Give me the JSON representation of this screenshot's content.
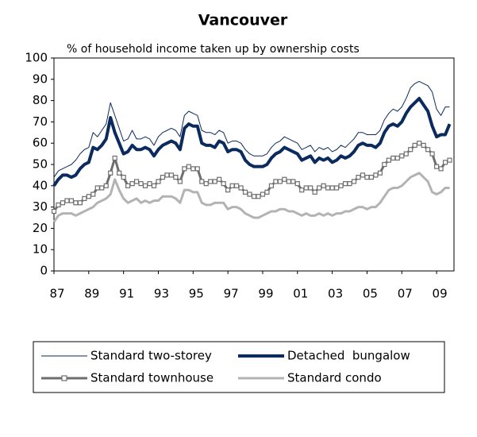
{
  "chart_data": {
    "type": "line",
    "title": "Vancouver",
    "ylabel": "% of household income taken up by ownership costs",
    "x": [
      1987,
      1987.25,
      1987.5,
      1987.75,
      1988,
      1988.25,
      1988.5,
      1988.75,
      1989,
      1989.25,
      1989.5,
      1989.75,
      1990,
      1990.25,
      1990.5,
      1990.75,
      1991,
      1991.25,
      1991.5,
      1991.75,
      1992,
      1992.25,
      1992.5,
      1992.75,
      1993,
      1993.25,
      1993.5,
      1993.75,
      1994,
      1994.25,
      1994.5,
      1994.75,
      1995,
      1995.25,
      1995.5,
      1995.75,
      1996,
      1996.25,
      1996.5,
      1996.75,
      1997,
      1997.25,
      1997.5,
      1997.75,
      1998,
      1998.25,
      1998.5,
      1998.75,
      1999,
      1999.25,
      1999.5,
      1999.75,
      2000,
      2000.25,
      2000.5,
      2000.75,
      2001,
      2001.25,
      2001.5,
      2001.75,
      2002,
      2002.25,
      2002.5,
      2002.75,
      2003,
      2003.25,
      2003.5,
      2003.75,
      2004,
      2004.25,
      2004.5,
      2004.75,
      2005,
      2005.25,
      2005.5,
      2005.75,
      2006,
      2006.25,
      2006.5,
      2006.75,
      2007,
      2007.25,
      2007.5,
      2007.75,
      2008,
      2008.25,
      2008.5,
      2008.75,
      2009,
      2009.25,
      2009.5,
      2009.75
    ],
    "xlim": [
      1987,
      2010
    ],
    "xticks": [
      {
        "value": 1987,
        "label": "87"
      },
      {
        "value": 1989,
        "label": "89"
      },
      {
        "value": 1991,
        "label": "91"
      },
      {
        "value": 1993,
        "label": "93"
      },
      {
        "value": 1995,
        "label": "95"
      },
      {
        "value": 1997,
        "label": "97"
      },
      {
        "value": 1999,
        "label": "99"
      },
      {
        "value": 2001,
        "label": "01"
      },
      {
        "value": 2003,
        "label": "03"
      },
      {
        "value": 2005,
        "label": "05"
      },
      {
        "value": 2007,
        "label": "07"
      },
      {
        "value": 2009,
        "label": "09"
      }
    ],
    "ylim": [
      0,
      100
    ],
    "yticks": [
      0,
      10,
      20,
      30,
      40,
      50,
      60,
      70,
      80,
      90,
      100
    ],
    "series": [
      {
        "name": "Standard two-storey",
        "color": "#0b2a5e",
        "width": 1,
        "values": [
          44,
          47,
          48,
          49,
          50,
          52,
          55,
          57,
          58,
          65,
          63,
          66,
          69,
          79,
          73,
          67,
          61,
          62,
          66,
          62,
          62,
          63,
          62,
          59,
          63,
          65,
          66,
          67,
          66,
          63,
          73,
          75,
          74,
          73,
          66,
          65,
          65,
          64,
          66,
          65,
          60,
          61,
          61,
          60,
          57,
          55,
          54,
          54,
          54,
          55,
          58,
          60,
          61,
          63,
          62,
          61,
          60,
          57,
          58,
          59,
          56,
          58,
          57,
          58,
          56,
          57,
          59,
          58,
          60,
          62,
          65,
          65,
          64,
          64,
          64,
          66,
          71,
          74,
          76,
          75,
          77,
          81,
          86,
          88,
          89,
          88,
          87,
          84,
          76,
          73,
          77,
          77
        ]
      },
      {
        "name": "Detached  bungalow",
        "color": "#0b2a5e",
        "width": 4,
        "values": [
          40,
          43,
          45,
          45,
          44,
          45,
          48,
          50,
          51,
          58,
          57,
          59,
          62,
          72,
          65,
          60,
          55,
          56,
          59,
          57,
          57,
          58,
          57,
          54,
          57,
          59,
          60,
          61,
          60,
          57,
          67,
          69,
          68,
          68,
          60,
          59,
          59,
          58,
          61,
          60,
          56,
          57,
          57,
          56,
          52,
          50,
          49,
          49,
          49,
          50,
          53,
          55,
          56,
          58,
          57,
          56,
          55,
          52,
          53,
          54,
          51,
          53,
          52,
          53,
          51,
          52,
          54,
          53,
          54,
          56,
          59,
          60,
          59,
          59,
          58,
          60,
          65,
          68,
          69,
          68,
          70,
          74,
          77,
          79,
          81,
          78,
          75,
          68,
          63,
          64,
          64,
          69
        ]
      },
      {
        "name": "Standard townhouse",
        "color": "#6e6e6e",
        "width": 3,
        "marker": "square",
        "values": [
          28,
          31,
          32,
          33,
          33,
          32,
          32,
          34,
          35,
          36,
          39,
          39,
          40,
          46,
          53,
          46,
          44,
          40,
          41,
          42,
          41,
          40,
          41,
          40,
          42,
          44,
          45,
          45,
          44,
          42,
          48,
          49,
          48,
          48,
          42,
          41,
          42,
          42,
          43,
          41,
          38,
          40,
          40,
          39,
          37,
          36,
          35,
          35,
          36,
          37,
          40,
          42,
          42,
          43,
          42,
          42,
          41,
          38,
          39,
          39,
          37,
          39,
          40,
          39,
          39,
          39,
          40,
          41,
          41,
          42,
          44,
          45,
          44,
          44,
          45,
          46,
          50,
          52,
          53,
          53,
          54,
          55,
          57,
          59,
          60,
          59,
          57,
          55,
          49,
          48,
          51,
          52
        ]
      },
      {
        "name": "Standard condo",
        "color": "#b3b3b3",
        "width": 3,
        "values": [
          23,
          26,
          27,
          27,
          27,
          26,
          27,
          28,
          29,
          30,
          32,
          33,
          34,
          36,
          43,
          38,
          34,
          32,
          33,
          34,
          32,
          33,
          32,
          33,
          33,
          35,
          35,
          35,
          34,
          32,
          38,
          38,
          37,
          37,
          32,
          31,
          31,
          32,
          32,
          32,
          29,
          30,
          30,
          29,
          27,
          26,
          25,
          25,
          26,
          27,
          28,
          28,
          29,
          29,
          28,
          28,
          27,
          26,
          27,
          26,
          26,
          27,
          26,
          27,
          26,
          27,
          27,
          28,
          28,
          29,
          30,
          30,
          29,
          30,
          30,
          32,
          35,
          38,
          39,
          39,
          40,
          42,
          44,
          45,
          46,
          44,
          42,
          37,
          36,
          37,
          39,
          39
        ]
      }
    ]
  }
}
